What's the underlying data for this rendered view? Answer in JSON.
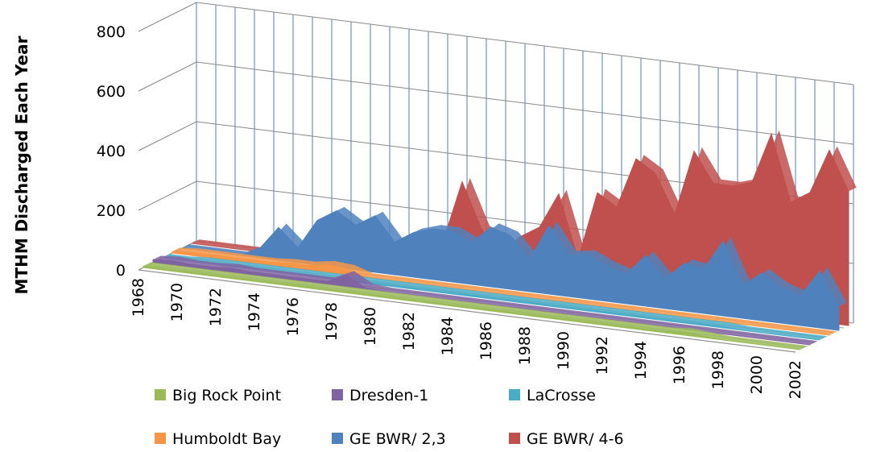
{
  "chart_data": {
    "type": "area3d",
    "y_label": "MTHM Discharged Each Year",
    "categories": [
      "1968",
      null,
      "1970",
      null,
      "1972",
      null,
      "1974",
      null,
      "1976",
      null,
      "1978",
      null,
      "1980",
      null,
      "1982",
      null,
      "1984",
      null,
      "1986",
      null,
      "1988",
      null,
      "1990",
      null,
      "1992",
      null,
      "1994",
      null,
      "1996",
      null,
      "1998",
      null,
      "2000",
      null,
      "2002"
    ],
    "series": [
      {
        "name": "Big Rock Point",
        "color": "#9BBB59",
        "values": [
          5,
          5,
          5,
          5,
          5,
          5,
          5,
          5,
          5,
          5,
          5,
          5,
          5,
          5,
          5,
          5,
          5,
          5,
          5,
          5,
          5,
          5,
          5,
          5,
          5,
          5,
          5,
          5,
          10,
          5,
          0,
          0,
          0,
          0,
          0
        ]
      },
      {
        "name": "Dresden-1",
        "color": "#8064A2",
        "values": [
          10,
          15,
          10,
          10,
          15,
          10,
          10,
          10,
          10,
          10,
          40,
          5,
          0,
          0,
          0,
          0,
          0,
          0,
          0,
          0,
          0,
          0,
          0,
          0,
          0,
          0,
          0,
          0,
          0,
          0,
          0,
          0,
          0,
          0,
          0
        ]
      },
      {
        "name": "LaCrosse",
        "color": "#4BACC6",
        "values": [
          0,
          0,
          5,
          5,
          5,
          5,
          5,
          5,
          5,
          5,
          5,
          5,
          5,
          5,
          5,
          5,
          5,
          5,
          5,
          5,
          5,
          5,
          5,
          5,
          5,
          5,
          5,
          5,
          5,
          5,
          0,
          0,
          0,
          0,
          0
        ]
      },
      {
        "name": "Humboldt Bay",
        "color": "#F79646",
        "values": [
          5,
          10,
          10,
          10,
          10,
          10,
          15,
          15,
          25,
          20,
          0,
          0,
          0,
          0,
          0,
          0,
          0,
          0,
          0,
          0,
          0,
          0,
          0,
          0,
          0,
          0,
          0,
          0,
          0,
          0,
          0,
          0,
          0,
          0,
          0
        ]
      },
      {
        "name": "GE BWR/ 2,3",
        "color": "#4F81BD",
        "values": [
          0,
          0,
          0,
          0,
          30,
          110,
          50,
          150,
          190,
          150,
          190,
          110,
          150,
          170,
          170,
          140,
          200,
          180,
          110,
          230,
          140,
          150,
          120,
          100,
          170,
          100,
          160,
          150,
          250,
          110,
          160,
          120,
          100,
          190,
          80
        ]
      },
      {
        "name": "GE BWR/ 4-6",
        "color": "#C0504D",
        "values": [
          0,
          0,
          0,
          0,
          0,
          0,
          0,
          0,
          0,
          0,
          0,
          30,
          100,
          110,
          320,
          170,
          100,
          160,
          200,
          320,
          110,
          340,
          300,
          470,
          430,
          300,
          520,
          420,
          420,
          440,
          610,
          390,
          430,
          580,
          450
        ]
      }
    ],
    "ylim": [
      0,
      800
    ],
    "yticks": [
      0,
      200,
      400,
      600,
      800
    ],
    "grid": true
  }
}
